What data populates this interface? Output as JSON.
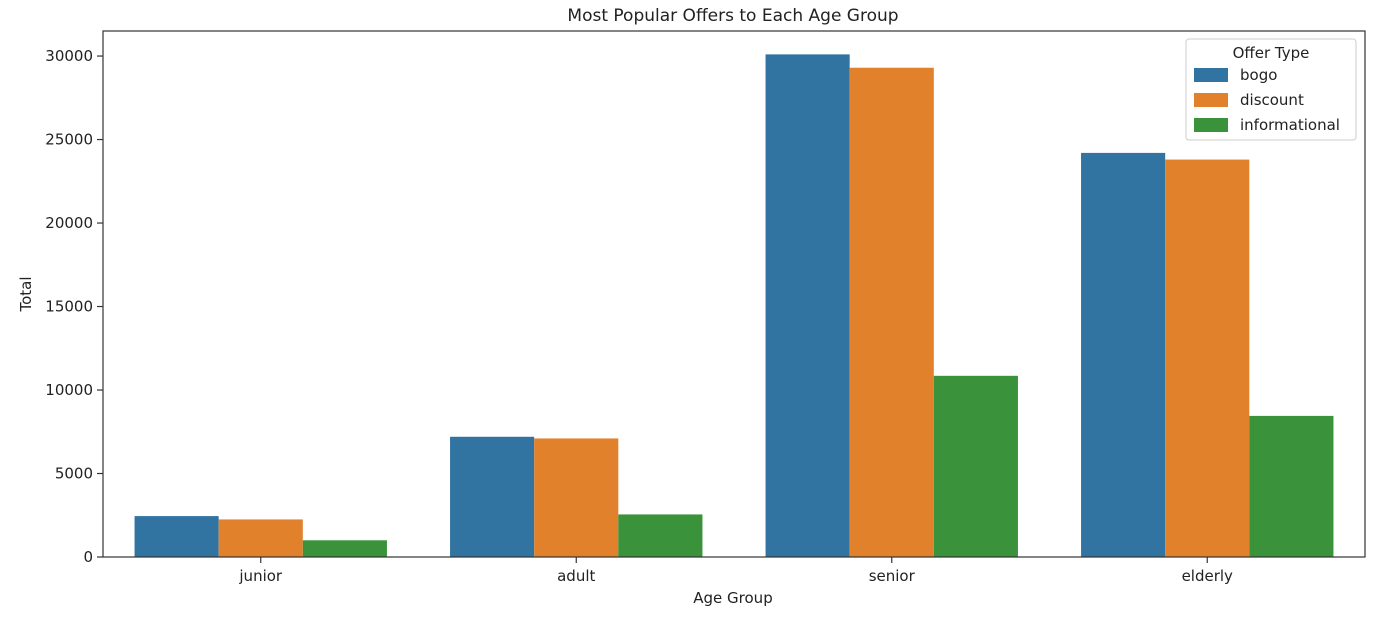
{
  "chart_data": {
    "type": "bar",
    "title": "Most Popular Offers to Each Age Group",
    "xlabel": "Age Group",
    "ylabel": "Total",
    "categories": [
      "junior",
      "adult",
      "senior",
      "elderly"
    ],
    "series": [
      {
        "name": "bogo",
        "color": "#3274a1",
        "values": [
          2450,
          7200,
          30100,
          24200
        ]
      },
      {
        "name": "discount",
        "color": "#e1812c",
        "values": [
          2250,
          7100,
          29300,
          23800
        ]
      },
      {
        "name": "informational",
        "color": "#3a923a",
        "values": [
          1000,
          2550,
          10850,
          8450
        ]
      }
    ],
    "ylim": [
      0,
      31500
    ],
    "yticks": [
      0,
      5000,
      10000,
      15000,
      20000,
      25000,
      30000
    ],
    "grid": false,
    "legend": {
      "title": "Offer Type",
      "placement": "top-right"
    }
  }
}
